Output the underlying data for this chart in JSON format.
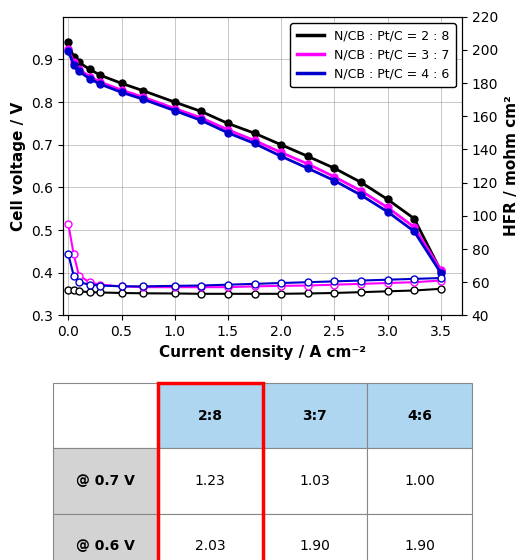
{
  "polarization": {
    "28": {
      "current": [
        0.0,
        0.05,
        0.1,
        0.2,
        0.3,
        0.5,
        0.7,
        1.0,
        1.25,
        1.5,
        1.75,
        2.0,
        2.25,
        2.5,
        2.75,
        3.0,
        3.25,
        3.5
      ],
      "voltage": [
        0.94,
        0.905,
        0.893,
        0.877,
        0.863,
        0.844,
        0.827,
        0.8,
        0.778,
        0.75,
        0.727,
        0.7,
        0.673,
        0.645,
        0.612,
        0.572,
        0.527,
        0.405
      ],
      "color": "#000000"
    },
    "37": {
      "current": [
        0.0,
        0.05,
        0.1,
        0.2,
        0.3,
        0.5,
        0.7,
        1.0,
        1.25,
        1.5,
        1.75,
        2.0,
        2.25,
        2.5,
        2.75,
        3.0,
        3.25,
        3.5
      ],
      "voltage": [
        0.925,
        0.893,
        0.877,
        0.86,
        0.847,
        0.828,
        0.812,
        0.785,
        0.763,
        0.735,
        0.71,
        0.682,
        0.655,
        0.625,
        0.592,
        0.553,
        0.507,
        0.407
      ],
      "color": "#ff00ff"
    },
    "46": {
      "current": [
        0.0,
        0.05,
        0.1,
        0.2,
        0.3,
        0.5,
        0.7,
        1.0,
        1.25,
        1.5,
        1.75,
        2.0,
        2.25,
        2.5,
        2.75,
        3.0,
        3.25,
        3.5
      ],
      "voltage": [
        0.92,
        0.887,
        0.872,
        0.855,
        0.842,
        0.823,
        0.807,
        0.78,
        0.757,
        0.728,
        0.703,
        0.673,
        0.645,
        0.616,
        0.582,
        0.543,
        0.497,
        0.4
      ],
      "color": "#0000cc"
    }
  },
  "hfr": {
    "28": {
      "current": [
        0.0,
        0.05,
        0.1,
        0.2,
        0.3,
        0.5,
        0.7,
        1.0,
        1.25,
        1.5,
        1.75,
        2.0,
        2.25,
        2.5,
        2.75,
        3.0,
        3.25,
        3.5
      ],
      "resistance": [
        55.5,
        55.0,
        54.5,
        54.0,
        53.8,
        53.5,
        53.3,
        53.2,
        53.0,
        53.0,
        53.0,
        53.0,
        53.2,
        53.5,
        54.0,
        54.5,
        55.0,
        56.0
      ],
      "color": "#000000"
    },
    "37": {
      "current": [
        0.0,
        0.05,
        0.1,
        0.2,
        0.3,
        0.5,
        0.7,
        1.0,
        1.25,
        1.5,
        1.75,
        2.0,
        2.25,
        2.5,
        2.75,
        3.0,
        3.25,
        3.5
      ],
      "resistance": [
        95,
        77,
        64,
        60,
        58.5,
        57.5,
        57.0,
        57.0,
        57.0,
        57.0,
        57.5,
        57.8,
        58.0,
        58.5,
        59.0,
        59.5,
        60.0,
        61.0
      ],
      "color": "#ff00ff"
    },
    "46": {
      "current": [
        0.0,
        0.05,
        0.1,
        0.2,
        0.3,
        0.5,
        0.7,
        1.0,
        1.25,
        1.5,
        1.75,
        2.0,
        2.25,
        2.5,
        2.75,
        3.0,
        3.25,
        3.5
      ],
      "resistance": [
        77,
        64,
        60,
        58.5,
        58.0,
        57.5,
        57.5,
        57.8,
        58.0,
        58.5,
        59.0,
        59.5,
        60.0,
        60.5,
        61.0,
        61.5,
        62.0,
        62.5
      ],
      "color": "#0000cc"
    }
  },
  "legend_labels": [
    "N/CB : Pt/C = 2 : 8",
    "N/CB : Pt/C = 3 : 7",
    "N/CB : Pt/C = 4 : 6"
  ],
  "legend_colors": [
    "#000000",
    "#ff00ff",
    "#0000cc"
  ],
  "xlabel": "Current density / A cm⁻²",
  "ylabel_left": "Cell voltage / V",
  "ylabel_right": "HFR / mohm cm²",
  "xlim": [
    -0.05,
    3.7
  ],
  "ylim_left": [
    0.3,
    1.0
  ],
  "ylim_right": [
    40,
    220
  ],
  "xticks": [
    0.0,
    0.5,
    1.0,
    1.5,
    2.0,
    2.5,
    3.0,
    3.5
  ],
  "yticks_left": [
    0.3,
    0.4,
    0.5,
    0.6,
    0.7,
    0.8,
    0.9
  ],
  "yticks_right": [
    40,
    60,
    80,
    100,
    120,
    140,
    160,
    180,
    200,
    220
  ],
  "table_headers": [
    "",
    "2:8",
    "3:7",
    "4:6"
  ],
  "table_rows": [
    [
      "@ 0.7 V",
      "1.23",
      "1.03",
      "1.00"
    ],
    [
      "@ 0.6 V",
      "2.03",
      "1.90",
      "1.90"
    ]
  ],
  "table_header_color": "#aed6f1",
  "table_row_label_color": "#d3d3d3",
  "figsize": [
    5.25,
    5.6
  ],
  "dpi": 100
}
